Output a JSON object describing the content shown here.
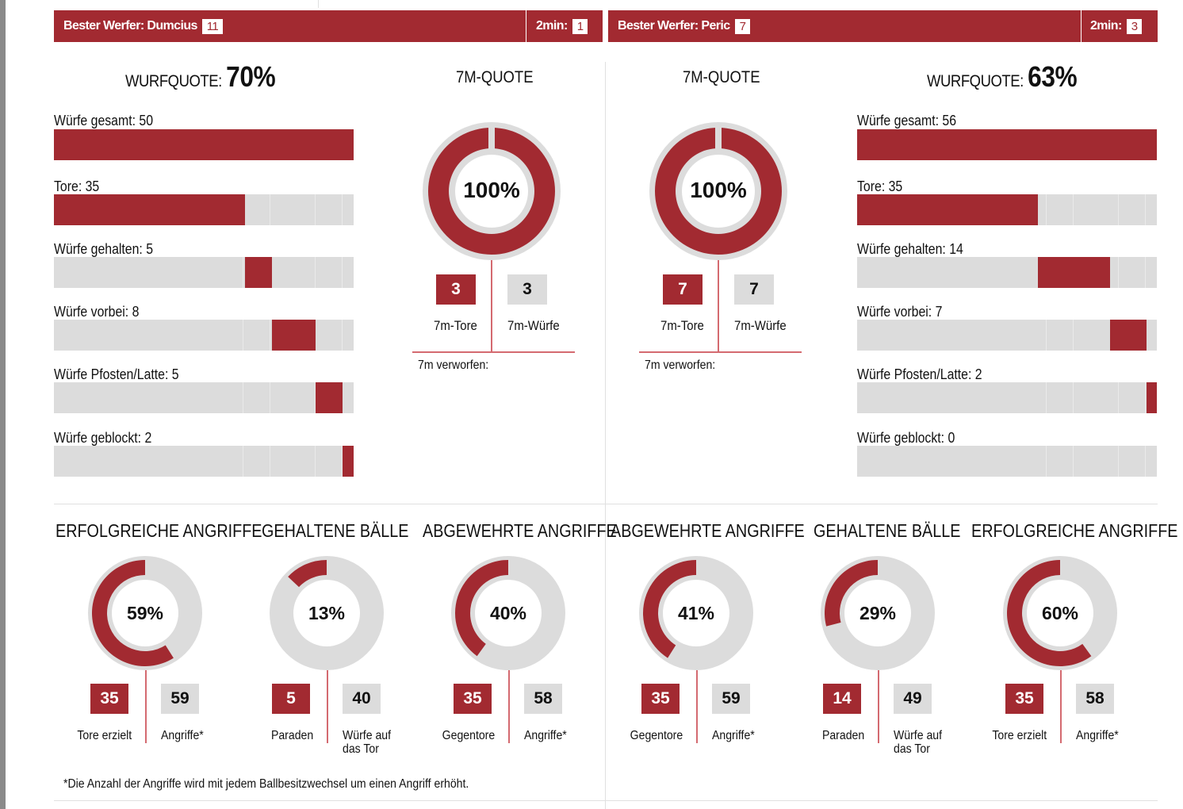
{
  "colors": {
    "red": "#a22a31",
    "gray": "#dcdcdc"
  },
  "teams": [
    {
      "best_thrower_label": "Bester Werfer: Dumcius",
      "best_thrower_goals": "11",
      "two_min_label": "2min:",
      "two_min": "1",
      "wurfquote_label": "WURFQUOTE:",
      "wurfquote": "70%",
      "stats": [
        {
          "label": "Würfe gesamt: 50",
          "value": 50
        },
        {
          "label": "Tore: 35",
          "value": 35
        },
        {
          "label": "Würfe gehalten: 5",
          "value": 5
        },
        {
          "label": "Würfe vorbei: 8",
          "value": 8
        },
        {
          "label": "Würfe Pfosten/Latte: 5",
          "value": 5
        },
        {
          "label": "Würfe geblockt: 2",
          "value": 2
        }
      ],
      "seven_m": {
        "title": "7M-QUOTE",
        "percent_label": "100%",
        "percent": 100,
        "goals": "3",
        "goals_label": "7m-Tore",
        "attempts": "3",
        "attempts_label": "7m-Würfe",
        "missed_label": "7m verworfen:"
      }
    },
    {
      "best_thrower_label": "Bester Werfer: Peric",
      "best_thrower_goals": "7",
      "two_min_label": "2min:",
      "two_min": "3",
      "wurfquote_label": "WURFQUOTE:",
      "wurfquote": "63%",
      "stats": [
        {
          "label": "Würfe gesamt: 56",
          "value": 56
        },
        {
          "label": "Tore: 35",
          "value": 35
        },
        {
          "label": "Würfe gehalten: 14",
          "value": 14
        },
        {
          "label": "Würfe vorbei: 7",
          "value": 7
        },
        {
          "label": "Würfe Pfosten/Latte: 2",
          "value": 2
        },
        {
          "label": "Würfe geblockt: 0",
          "value": 0
        }
      ],
      "seven_m": {
        "title": "7M-QUOTE",
        "percent_label": "100%",
        "percent": 100,
        "goals": "7",
        "goals_label": "7m-Tore",
        "attempts": "7",
        "attempts_label": "7m-Würfe",
        "missed_label": "7m verworfen:"
      }
    }
  ],
  "donuts": [
    {
      "title": "ERFOLGREICHE ANGRIFFE",
      "percent_label": "59%",
      "percent": 59,
      "a": "35",
      "a_label": "Tore erzielt",
      "b": "59",
      "b_label": "Angriffe*"
    },
    {
      "title": "GEHALTENE BÄLLE",
      "percent_label": "13%",
      "percent": 13,
      "a": "5",
      "a_label": "Paraden",
      "b": "40",
      "b_label": "Würfe auf das Tor"
    },
    {
      "title": "ABGEWEHRTE ANGRIFFE",
      "percent_label": "40%",
      "percent": 40,
      "a": "35",
      "a_label": "Gegentore",
      "b": "58",
      "b_label": "Angriffe*"
    },
    {
      "title": "ABGEWEHRTE ANGRIFFE",
      "percent_label": "41%",
      "percent": 41,
      "a": "35",
      "a_label": "Gegentore",
      "b": "59",
      "b_label": "Angriffe*"
    },
    {
      "title": "GEHALTENE BÄLLE",
      "percent_label": "29%",
      "percent": 29,
      "a": "14",
      "a_label": "Paraden",
      "b": "49",
      "b_label": "Würfe auf das Tor"
    },
    {
      "title": "ERFOLGREICHE ANGRIFFE",
      "percent_label": "60%",
      "percent": 60,
      "a": "35",
      "a_label": "Tore erzielt",
      "b": "58",
      "b_label": "Angriffe*"
    }
  ],
  "footnote": "*Die Anzahl der Angriffe wird mit jedem Ballbesitzwechsel um einen Angriff erhöht."
}
